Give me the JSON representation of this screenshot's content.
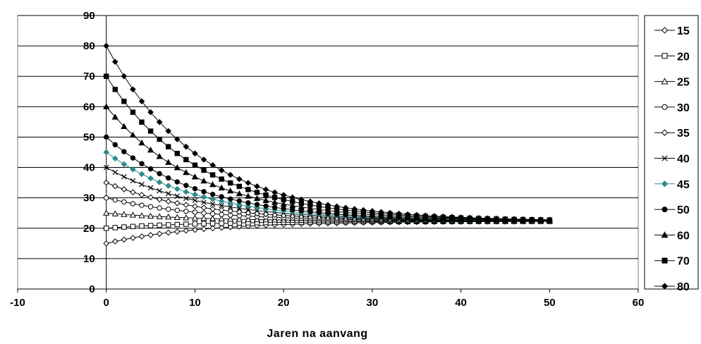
{
  "chart_data": {
    "type": "line",
    "title": "",
    "xlabel": "Jaren na aanvang",
    "ylabel": "",
    "xlim": [
      -10,
      60
    ],
    "ylim": [
      0,
      90
    ],
    "xticks": [
      -10,
      0,
      10,
      20,
      30,
      40,
      50,
      60
    ],
    "yticks": [
      0,
      10,
      20,
      30,
      40,
      50,
      60,
      70,
      80,
      90
    ],
    "grid": "horizontal",
    "legend": "right",
    "equilibrium": 22.3,
    "decay_rate": 0.095,
    "x": [
      0,
      1,
      2,
      3,
      4,
      5,
      6,
      7,
      8,
      9,
      10,
      11,
      12,
      13,
      14,
      15,
      16,
      17,
      18,
      19,
      20,
      21,
      22,
      23,
      24,
      25,
      26,
      27,
      28,
      29,
      30,
      31,
      32,
      33,
      34,
      35,
      36,
      37,
      38,
      39,
      40,
      41,
      42,
      43,
      44,
      45,
      46,
      47,
      48,
      49,
      50
    ],
    "series": [
      {
        "name": "15",
        "start": 15,
        "marker": "diamond-open",
        "color": "#000000"
      },
      {
        "name": "20",
        "start": 20,
        "marker": "square-open",
        "color": "#000000"
      },
      {
        "name": "25",
        "start": 25,
        "marker": "triangle-open",
        "color": "#000000"
      },
      {
        "name": "30",
        "start": 30,
        "marker": "circle-open",
        "color": "#000000"
      },
      {
        "name": "35",
        "start": 35,
        "marker": "diamond-open",
        "color": "#000000"
      },
      {
        "name": "40",
        "start": 40,
        "marker": "x",
        "color": "#000000"
      },
      {
        "name": "45",
        "start": 45,
        "marker": "diamond-filled",
        "color": "#2e8b8b"
      },
      {
        "name": "50",
        "start": 50,
        "marker": "circle-filled",
        "color": "#000000"
      },
      {
        "name": "60",
        "start": 60,
        "marker": "triangle-filled",
        "color": "#000000"
      },
      {
        "name": "70",
        "start": 70,
        "marker": "square-filled",
        "color": "#000000"
      },
      {
        "name": "80",
        "start": 80,
        "marker": "diamond-filled",
        "color": "#000000"
      }
    ]
  }
}
